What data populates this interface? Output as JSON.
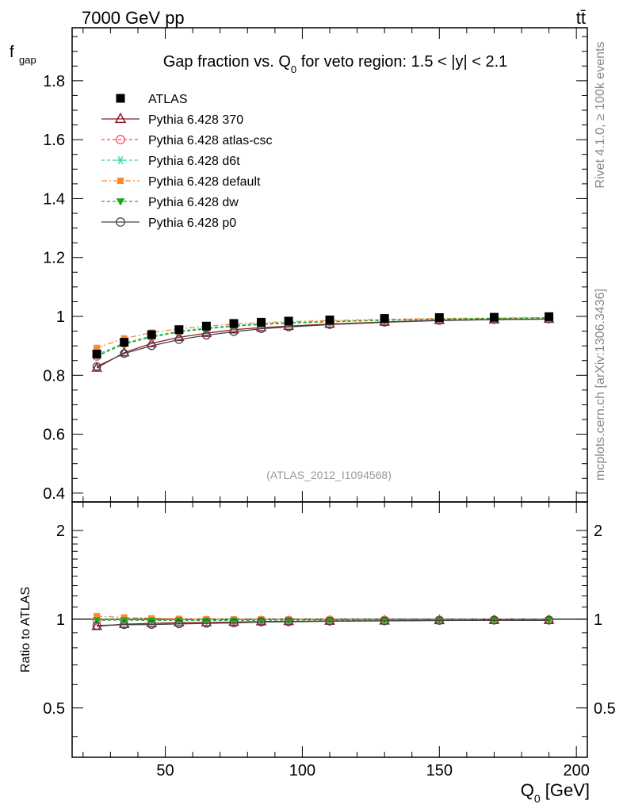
{
  "header": {
    "left": "7000 GeV pp",
    "right": "tt̄"
  },
  "side_labels": {
    "rivet": "Rivet 4.1.0, ≥ 100k events",
    "mcplots": "mcplots.cern.ch [arXiv:1306.3436]"
  },
  "watermark": "(ATLAS_2012_I1094568)",
  "colors": {
    "ATLAS": "#000000",
    "370": "#8b1a2b",
    "atlas-csc": "#ff4466",
    "d6t": "#22ddaa",
    "default": "#ff8833",
    "dw": "#1aaa1a",
    "p0": "#444444"
  },
  "chart_data": [
    {
      "type": "line",
      "title_parts": [
        "Gap fraction vs. Q",
        "0",
        " for veto region: 1.5 < |y| < 2.1"
      ],
      "ylabel_main": "f",
      "ylabel_sub": "gap",
      "xlim": [
        16,
        204
      ],
      "ylim": [
        0.37,
        1.98
      ],
      "yticks": [
        0.4,
        0.6,
        0.8,
        1,
        1.2,
        1.4,
        1.6,
        1.8
      ],
      "ytick_labels": [
        "0.4",
        "0.6",
        "0.8",
        "1",
        "1.2",
        "1.4",
        "1.6",
        "1.8"
      ],
      "x": [
        25,
        35,
        45,
        55,
        65,
        75,
        85,
        95,
        110,
        130,
        150,
        170,
        190
      ],
      "series": [
        {
          "name": "ATLAS",
          "label": "ATLAS",
          "marker": "square-filled",
          "dash": "none",
          "values": [
            0.872,
            0.912,
            0.938,
            0.955,
            0.967,
            0.976,
            0.98,
            0.984,
            0.988,
            0.993,
            0.996,
            0.997,
            0.999
          ]
        },
        {
          "name": "370",
          "label": "Pythia 6.428 370",
          "marker": "triangle-open",
          "dash": "solid",
          "values": [
            0.825,
            0.877,
            0.908,
            0.929,
            0.943,
            0.955,
            0.962,
            0.967,
            0.974,
            0.981,
            0.987,
            0.989,
            0.991
          ]
        },
        {
          "name": "atlas-csc",
          "label": "Pythia 6.428 atlas-csc",
          "marker": "circle-open",
          "dash": "4,3",
          "values": [
            0.864,
            0.908,
            0.931,
            0.948,
            0.959,
            0.967,
            0.973,
            0.977,
            0.982,
            0.987,
            0.991,
            0.993,
            0.995
          ]
        },
        {
          "name": "d6t",
          "label": "Pythia 6.428 d6t",
          "marker": "asterisk",
          "dash": "4,3",
          "values": [
            0.87,
            0.91,
            0.933,
            0.95,
            0.961,
            0.969,
            0.975,
            0.979,
            0.983,
            0.988,
            0.992,
            0.993,
            0.995
          ]
        },
        {
          "name": "default",
          "label": "Pythia 6.428 default",
          "marker": "square-filled",
          "dash": "7,3,2,3",
          "values": [
            0.893,
            0.925,
            0.945,
            0.958,
            0.967,
            0.974,
            0.979,
            0.982,
            0.986,
            0.99,
            0.993,
            0.994,
            0.996
          ]
        },
        {
          "name": "dw",
          "label": "Pythia 6.428 dw",
          "marker": "triangle-down-filled",
          "dash": "4,3",
          "values": [
            0.866,
            0.906,
            0.93,
            0.947,
            0.958,
            0.967,
            0.973,
            0.977,
            0.982,
            0.987,
            0.991,
            0.993,
            0.995
          ]
        },
        {
          "name": "p0",
          "label": "Pythia 6.428 p0",
          "marker": "circle-open",
          "dash": "solid",
          "values": [
            0.83,
            0.874,
            0.9,
            0.921,
            0.936,
            0.948,
            0.958,
            0.964,
            0.972,
            0.98,
            0.986,
            0.989,
            0.991
          ]
        }
      ]
    },
    {
      "type": "line",
      "title": "ratio",
      "ylabel": "Ratio to ATLAS",
      "xlabel_main": "Q",
      "xlabel_sub": "0",
      "xlabel_unit": " [GeV]",
      "xlim": [
        16,
        204
      ],
      "ylim": [
        0.34,
        2.5
      ],
      "scale": "log",
      "yticks": [
        0.5,
        1,
        2
      ],
      "ytick_labels": [
        "0.5",
        "1",
        "2"
      ],
      "xticks": [
        50,
        100,
        150,
        200
      ],
      "xtick_labels": [
        "50",
        "100",
        "150",
        "200"
      ],
      "x": [
        25,
        35,
        45,
        55,
        65,
        75,
        85,
        95,
        110,
        130,
        150,
        170,
        190
      ],
      "series": [
        {
          "name": "370",
          "values": [
            0.946,
            0.962,
            0.968,
            0.973,
            0.975,
            0.978,
            0.982,
            0.983,
            0.986,
            0.988,
            0.991,
            0.992,
            0.992
          ]
        },
        {
          "name": "atlas-csc",
          "values": [
            0.991,
            0.996,
            0.993,
            0.993,
            0.992,
            0.991,
            0.993,
            0.993,
            0.994,
            0.994,
            0.995,
            0.996,
            0.996
          ]
        },
        {
          "name": "d6t",
          "values": [
            0.998,
            0.998,
            0.995,
            0.995,
            0.994,
            0.993,
            0.995,
            0.995,
            0.995,
            0.995,
            0.996,
            0.996,
            0.996
          ]
        },
        {
          "name": "default",
          "values": [
            1.024,
            1.014,
            1.007,
            1.003,
            1.0,
            0.998,
            0.999,
            0.998,
            0.998,
            0.997,
            0.997,
            0.997,
            0.997
          ]
        },
        {
          "name": "dw",
          "values": [
            0.993,
            0.993,
            0.991,
            0.992,
            0.991,
            0.991,
            0.993,
            0.993,
            0.994,
            0.994,
            0.995,
            0.996,
            0.996
          ]
        },
        {
          "name": "p0",
          "values": [
            0.952,
            0.958,
            0.959,
            0.964,
            0.968,
            0.971,
            0.978,
            0.98,
            0.984,
            0.987,
            0.99,
            0.992,
            0.992
          ]
        }
      ]
    }
  ]
}
